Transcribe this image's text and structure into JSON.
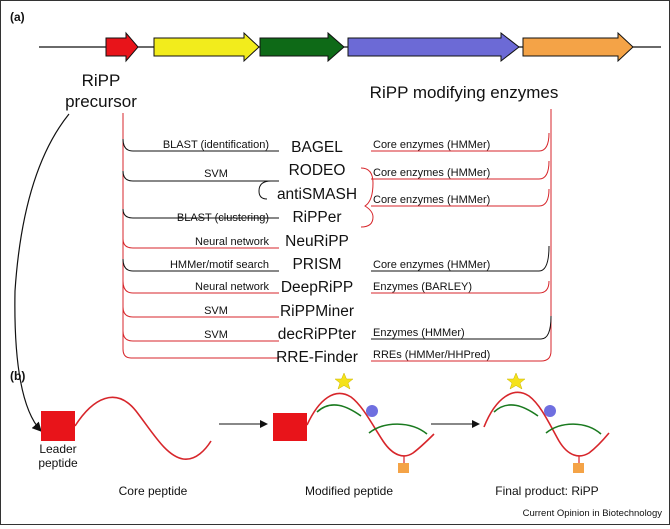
{
  "panel_a": "(a)",
  "panel_b": "(b)",
  "precursor_label": [
    "RiPP",
    "precursor"
  ],
  "enzymes_label": "RiPP modifying enzymes",
  "tools": [
    {
      "name": "BAGEL",
      "method": "BLAST (identification)",
      "enzyme": "Core enzymes (HMMer)"
    },
    {
      "name": "RODEO",
      "method": "SVM",
      "enzyme": "Core enzymes (HMMer)"
    },
    {
      "name": "antiSMASH",
      "method": "",
      "enzyme": "Core enzymes (HMMer)"
    },
    {
      "name": "RiPPer",
      "method": "BLAST (clustering)",
      "enzyme": ""
    },
    {
      "name": "NeuRiPP",
      "method": "Neural network",
      "enzyme": ""
    },
    {
      "name": "PRISM",
      "method": "HMMer/motif search",
      "enzyme": "Core enzymes (HMMer)"
    },
    {
      "name": "DeepRiPP",
      "method": "Neural network",
      "enzyme": "Enzymes (BARLEY)"
    },
    {
      "name": "RiPPMiner",
      "method": "SVM",
      "enzyme": ""
    },
    {
      "name": "decRiPPter",
      "method": "SVM",
      "enzyme": "Enzymes (HMMer)"
    },
    {
      "name": "RRE-Finder",
      "method": "",
      "enzyme": "RREs (HMMer/HHPred)"
    }
  ],
  "leader_label": [
    "Leader",
    "peptide"
  ],
  "core_label": "Core peptide",
  "modified_label": "Modified peptide",
  "final_label": "Final product: RiPP",
  "source": "Current Opinion in Biotechnology",
  "colors": {
    "precursor_gene": "#e8141a",
    "gene_yellow": "#f2ec1c",
    "gene_green": "#0e6a17",
    "gene_blue": "#6c6ad6",
    "gene_orange": "#f4a347",
    "red_line": "#d7262b",
    "green_line": "#1a7a1f",
    "blue_dot": "#6f6fe0",
    "star": "#f5e21a",
    "orange_square": "#f4a347"
  }
}
